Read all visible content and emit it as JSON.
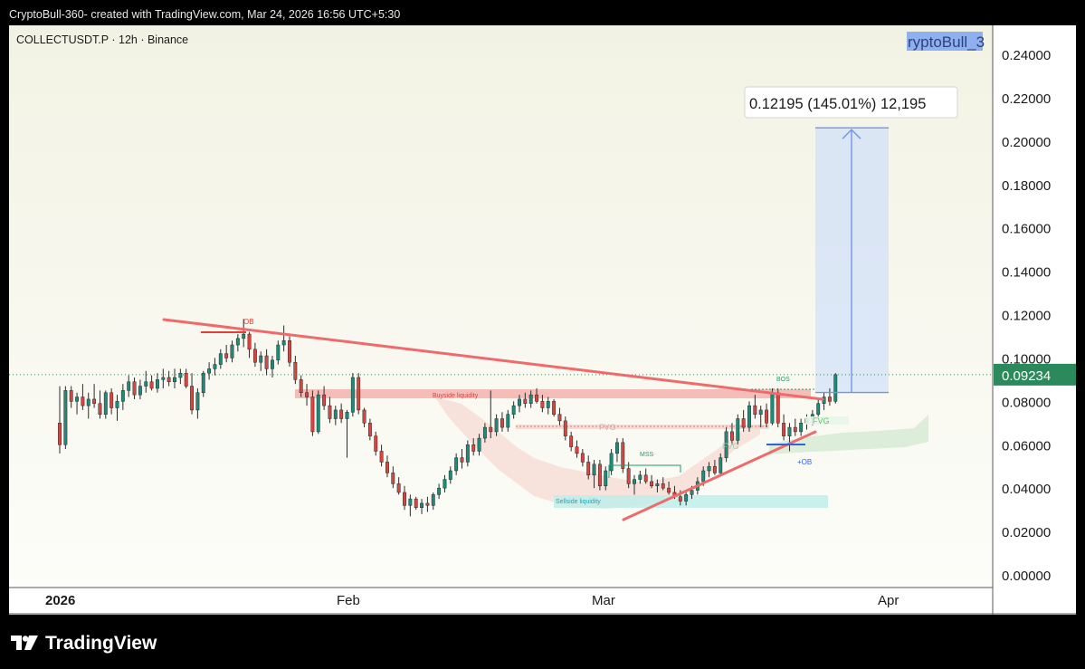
{
  "header": {
    "text": "CryptoBull-360- created with TradingView.com, Mar 24, 2026 16:56 UTC+5:30"
  },
  "footer": {
    "brand": "TradingView"
  },
  "colors": {
    "background_top": "#f2f2e6",
    "background_bottom": "#fdfdf9",
    "up": "#1f8a78",
    "down": "#d9443f",
    "trendline": "#ef6b6b",
    "target_box": "#c9dcfb",
    "price_tag": "#2a8a5c"
  },
  "chart_data": {
    "type": "candlestick",
    "symbol_label": "COLLECTUSDT.P · 12h · Binance",
    "watermark": "ryptoBull_3",
    "y_axis": {
      "range": [
        0,
        0.25
      ],
      "ticks": [
        "0.24000",
        "0.22000",
        "0.20000",
        "0.18000",
        "0.16000",
        "0.14000",
        "0.12000",
        "0.10000",
        "0.08000",
        "0.06000",
        "0.04000",
        "0.02000",
        "0.00000"
      ]
    },
    "x_axis": {
      "labels": [
        "2026",
        "Feb",
        "Mar",
        "Apr"
      ]
    },
    "current_price": "0.09234",
    "measure_label": "0.12195 (145.01%) 12,195",
    "measure": {
      "from": 0.0841,
      "to": 0.2061
    },
    "annotations": {
      "ob": "OB",
      "buyside": "Buyside liquidity",
      "sellside": "Sellside liquidity",
      "mss": "MSS",
      "bos": "BOS",
      "fvg1": "FVG",
      "fvg2": "FVG",
      "fvg3": "FVG",
      "plus_ob": "+OB"
    },
    "candles": [
      [
        0.07,
        0.087,
        0.056,
        0.06
      ],
      [
        0.06,
        0.087,
        0.058,
        0.085
      ],
      [
        0.085,
        0.087,
        0.077,
        0.08
      ],
      [
        0.08,
        0.084,
        0.074,
        0.082
      ],
      [
        0.082,
        0.088,
        0.076,
        0.078
      ],
      [
        0.078,
        0.084,
        0.072,
        0.081
      ],
      [
        0.081,
        0.088,
        0.077,
        0.079
      ],
      [
        0.079,
        0.085,
        0.072,
        0.074
      ],
      [
        0.074,
        0.085,
        0.072,
        0.084
      ],
      [
        0.084,
        0.086,
        0.074,
        0.077
      ],
      [
        0.077,
        0.083,
        0.071,
        0.08
      ],
      [
        0.08,
        0.088,
        0.076,
        0.085
      ],
      [
        0.085,
        0.092,
        0.082,
        0.089
      ],
      [
        0.089,
        0.091,
        0.081,
        0.083
      ],
      [
        0.083,
        0.09,
        0.081,
        0.087
      ],
      [
        0.087,
        0.094,
        0.084,
        0.089
      ],
      [
        0.089,
        0.092,
        0.085,
        0.086
      ],
      [
        0.086,
        0.093,
        0.084,
        0.09
      ],
      [
        0.09,
        0.095,
        0.086,
        0.091
      ],
      [
        0.091,
        0.094,
        0.087,
        0.089
      ],
      [
        0.089,
        0.095,
        0.086,
        0.091
      ],
      [
        0.091,
        0.095,
        0.088,
        0.093
      ],
      [
        0.093,
        0.095,
        0.086,
        0.087
      ],
      [
        0.087,
        0.093,
        0.074,
        0.076
      ],
      [
        0.076,
        0.086,
        0.072,
        0.084
      ],
      [
        0.084,
        0.094,
        0.082,
        0.093
      ],
      [
        0.093,
        0.098,
        0.09,
        0.095
      ],
      [
        0.095,
        0.1,
        0.092,
        0.097
      ],
      [
        0.097,
        0.104,
        0.095,
        0.102
      ],
      [
        0.102,
        0.106,
        0.098,
        0.1
      ],
      [
        0.1,
        0.108,
        0.098,
        0.106
      ],
      [
        0.106,
        0.111,
        0.103,
        0.109
      ],
      [
        0.109,
        0.118,
        0.105,
        0.111
      ],
      [
        0.111,
        0.112,
        0.1,
        0.104
      ],
      [
        0.104,
        0.107,
        0.096,
        0.098
      ],
      [
        0.098,
        0.103,
        0.094,
        0.101
      ],
      [
        0.101,
        0.104,
        0.092,
        0.095
      ],
      [
        0.095,
        0.101,
        0.091,
        0.099
      ],
      [
        0.099,
        0.108,
        0.097,
        0.106
      ],
      [
        0.106,
        0.115,
        0.103,
        0.108
      ],
      [
        0.108,
        0.11,
        0.096,
        0.098
      ],
      [
        0.098,
        0.101,
        0.088,
        0.09
      ],
      [
        0.09,
        0.092,
        0.082,
        0.084
      ],
      [
        0.084,
        0.088,
        0.078,
        0.082
      ],
      [
        0.082,
        0.085,
        0.064,
        0.066
      ],
      [
        0.066,
        0.085,
        0.065,
        0.083
      ],
      [
        0.083,
        0.087,
        0.076,
        0.078
      ],
      [
        0.078,
        0.082,
        0.07,
        0.072
      ],
      [
        0.072,
        0.078,
        0.069,
        0.076
      ],
      [
        0.076,
        0.079,
        0.07,
        0.072
      ],
      [
        0.072,
        0.076,
        0.054,
        0.075
      ],
      [
        0.075,
        0.093,
        0.073,
        0.091
      ],
      [
        0.091,
        0.093,
        0.074,
        0.076
      ],
      [
        0.076,
        0.077,
        0.068,
        0.07
      ],
      [
        0.07,
        0.072,
        0.062,
        0.064
      ],
      [
        0.064,
        0.066,
        0.055,
        0.057
      ],
      [
        0.057,
        0.06,
        0.05,
        0.052
      ],
      [
        0.052,
        0.055,
        0.045,
        0.047
      ],
      [
        0.047,
        0.05,
        0.04,
        0.042
      ],
      [
        0.042,
        0.045,
        0.037,
        0.038
      ],
      [
        0.038,
        0.041,
        0.03,
        0.032
      ],
      [
        0.032,
        0.037,
        0.027,
        0.035
      ],
      [
        0.035,
        0.036,
        0.03,
        0.031
      ],
      [
        0.031,
        0.035,
        0.028,
        0.033
      ],
      [
        0.033,
        0.036,
        0.029,
        0.032
      ],
      [
        0.032,
        0.038,
        0.03,
        0.037
      ],
      [
        0.037,
        0.042,
        0.035,
        0.04
      ],
      [
        0.04,
        0.046,
        0.038,
        0.044
      ],
      [
        0.044,
        0.05,
        0.042,
        0.048
      ],
      [
        0.048,
        0.056,
        0.046,
        0.054
      ],
      [
        0.054,
        0.058,
        0.049,
        0.052
      ],
      [
        0.052,
        0.062,
        0.05,
        0.06
      ],
      [
        0.06,
        0.063,
        0.055,
        0.057
      ],
      [
        0.057,
        0.065,
        0.055,
        0.063
      ],
      [
        0.063,
        0.07,
        0.061,
        0.068
      ],
      [
        0.068,
        0.085,
        0.063,
        0.066
      ],
      [
        0.066,
        0.074,
        0.064,
        0.072
      ],
      [
        0.072,
        0.075,
        0.066,
        0.068
      ],
      [
        0.068,
        0.076,
        0.066,
        0.074
      ],
      [
        0.074,
        0.08,
        0.072,
        0.078
      ],
      [
        0.078,
        0.083,
        0.075,
        0.081
      ],
      [
        0.081,
        0.084,
        0.077,
        0.079
      ],
      [
        0.079,
        0.085,
        0.077,
        0.083
      ],
      [
        0.083,
        0.086,
        0.079,
        0.08
      ],
      [
        0.08,
        0.083,
        0.075,
        0.077
      ],
      [
        0.077,
        0.082,
        0.074,
        0.08
      ],
      [
        0.08,
        0.081,
        0.073,
        0.074
      ],
      [
        0.074,
        0.077,
        0.069,
        0.071
      ],
      [
        0.071,
        0.073,
        0.062,
        0.064
      ],
      [
        0.064,
        0.066,
        0.057,
        0.059
      ],
      [
        0.059,
        0.062,
        0.054,
        0.056
      ],
      [
        0.056,
        0.058,
        0.05,
        0.052
      ],
      [
        0.052,
        0.055,
        0.044,
        0.046
      ],
      [
        0.046,
        0.053,
        0.04,
        0.051
      ],
      [
        0.051,
        0.053,
        0.039,
        0.041
      ],
      [
        0.041,
        0.05,
        0.039,
        0.048
      ],
      [
        0.048,
        0.058,
        0.046,
        0.056
      ],
      [
        0.056,
        0.063,
        0.052,
        0.061
      ],
      [
        0.061,
        0.063,
        0.047,
        0.049
      ],
      [
        0.049,
        0.052,
        0.04,
        0.042
      ],
      [
        0.042,
        0.046,
        0.037,
        0.044
      ],
      [
        0.044,
        0.048,
        0.042,
        0.046
      ],
      [
        0.046,
        0.049,
        0.042,
        0.043
      ],
      [
        0.043,
        0.046,
        0.04,
        0.041
      ],
      [
        0.041,
        0.044,
        0.038,
        0.042
      ],
      [
        0.042,
        0.045,
        0.039,
        0.04
      ],
      [
        0.04,
        0.043,
        0.037,
        0.038
      ],
      [
        0.038,
        0.041,
        0.035,
        0.036
      ],
      [
        0.036,
        0.039,
        0.032,
        0.034
      ],
      [
        0.034,
        0.038,
        0.032,
        0.037
      ],
      [
        0.037,
        0.041,
        0.035,
        0.039
      ],
      [
        0.039,
        0.045,
        0.037,
        0.043
      ],
      [
        0.043,
        0.05,
        0.041,
        0.048
      ],
      [
        0.048,
        0.052,
        0.045,
        0.05
      ],
      [
        0.05,
        0.053,
        0.046,
        0.047
      ],
      [
        0.047,
        0.056,
        0.046,
        0.054
      ],
      [
        0.054,
        0.068,
        0.052,
        0.066
      ],
      [
        0.066,
        0.07,
        0.06,
        0.062
      ],
      [
        0.062,
        0.074,
        0.06,
        0.072
      ],
      [
        0.072,
        0.076,
        0.066,
        0.068
      ],
      [
        0.068,
        0.08,
        0.066,
        0.078
      ],
      [
        0.078,
        0.083,
        0.072,
        0.074
      ],
      [
        0.074,
        0.078,
        0.068,
        0.076
      ],
      [
        0.076,
        0.079,
        0.068,
        0.07
      ],
      [
        0.07,
        0.086,
        0.069,
        0.084
      ],
      [
        0.084,
        0.086,
        0.068,
        0.07
      ],
      [
        0.07,
        0.074,
        0.062,
        0.064
      ],
      [
        0.064,
        0.07,
        0.057,
        0.068
      ],
      [
        0.068,
        0.072,
        0.064,
        0.066
      ],
      [
        0.066,
        0.072,
        0.064,
        0.07
      ],
      [
        0.07,
        0.074,
        0.067,
        0.072
      ],
      [
        0.072,
        0.076,
        0.069,
        0.074
      ],
      [
        0.074,
        0.081,
        0.072,
        0.079
      ],
      [
        0.079,
        0.084,
        0.076,
        0.082
      ],
      [
        0.082,
        0.086,
        0.078,
        0.08
      ],
      [
        0.08,
        0.093,
        0.079,
        0.0923
      ]
    ]
  }
}
